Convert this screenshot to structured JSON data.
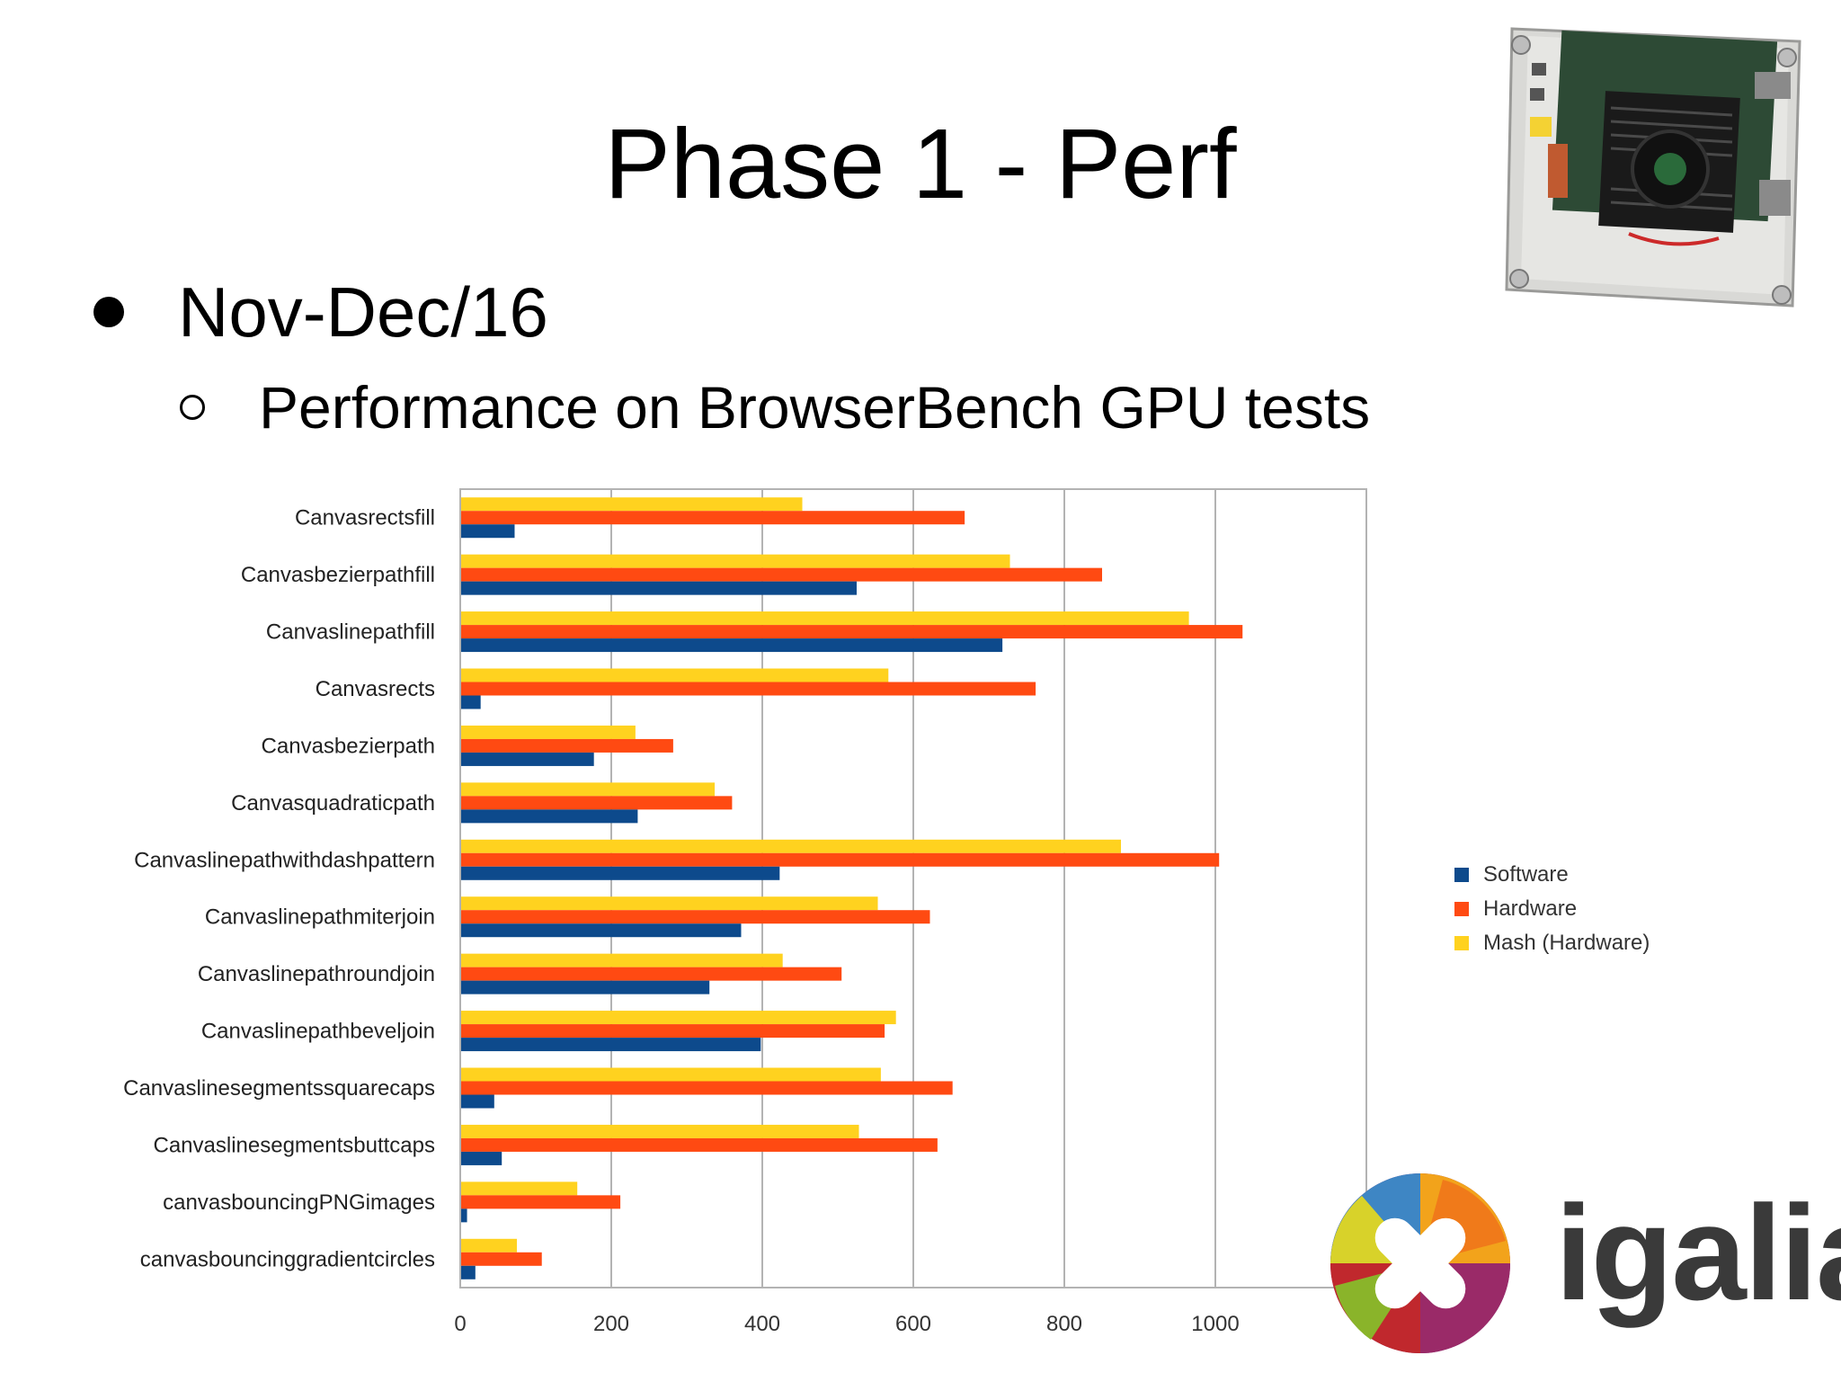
{
  "slide": {
    "title": "Phase 1 - Perf",
    "bullet": "Nov-Dec/16",
    "sub_bullet": "Performance on BrowserBench GPU tests",
    "logo_text": "igalia"
  },
  "colors": {
    "software": "#0d4a8c",
    "hardware": "#ff4a12",
    "mash": "#ffd21f"
  },
  "chart_data": {
    "type": "bar",
    "orientation": "horizontal",
    "categories": [
      "Canvasrectsfill",
      "Canvasbezierpathfill",
      "Canvaslinepathfill",
      "Canvasrects",
      "Canvasbezierpath",
      "Canvasquadraticpath",
      "Canvaslinepathwithdashpattern",
      "Canvaslinepathmiterjoin",
      "Canvaslinepathroundjoin",
      "Canvaslinepathbeveljoin",
      "Canvaslinesegmentssquarecaps",
      "Canvaslinesegmentsbuttcaps",
      "canvasbouncingPNGimages",
      "canvasbouncinggradientcircles"
    ],
    "series": [
      {
        "name": "Software",
        "values": [
          72,
          525,
          718,
          27,
          177,
          235,
          423,
          372,
          330,
          398,
          45,
          55,
          9,
          20
        ]
      },
      {
        "name": "Hardware",
        "values": [
          668,
          850,
          1036,
          762,
          282,
          360,
          1005,
          622,
          505,
          562,
          652,
          632,
          212,
          108
        ]
      },
      {
        "name": "Mash (Hardware)",
        "values": [
          453,
          728,
          965,
          567,
          232,
          337,
          875,
          553,
          427,
          577,
          557,
          528,
          155,
          75
        ]
      }
    ],
    "xticks": [
      "0",
      "200",
      "400",
      "600",
      "800",
      "1000"
    ],
    "xlim": [
      0,
      1200
    ],
    "grid": true,
    "legend_position": "right"
  }
}
